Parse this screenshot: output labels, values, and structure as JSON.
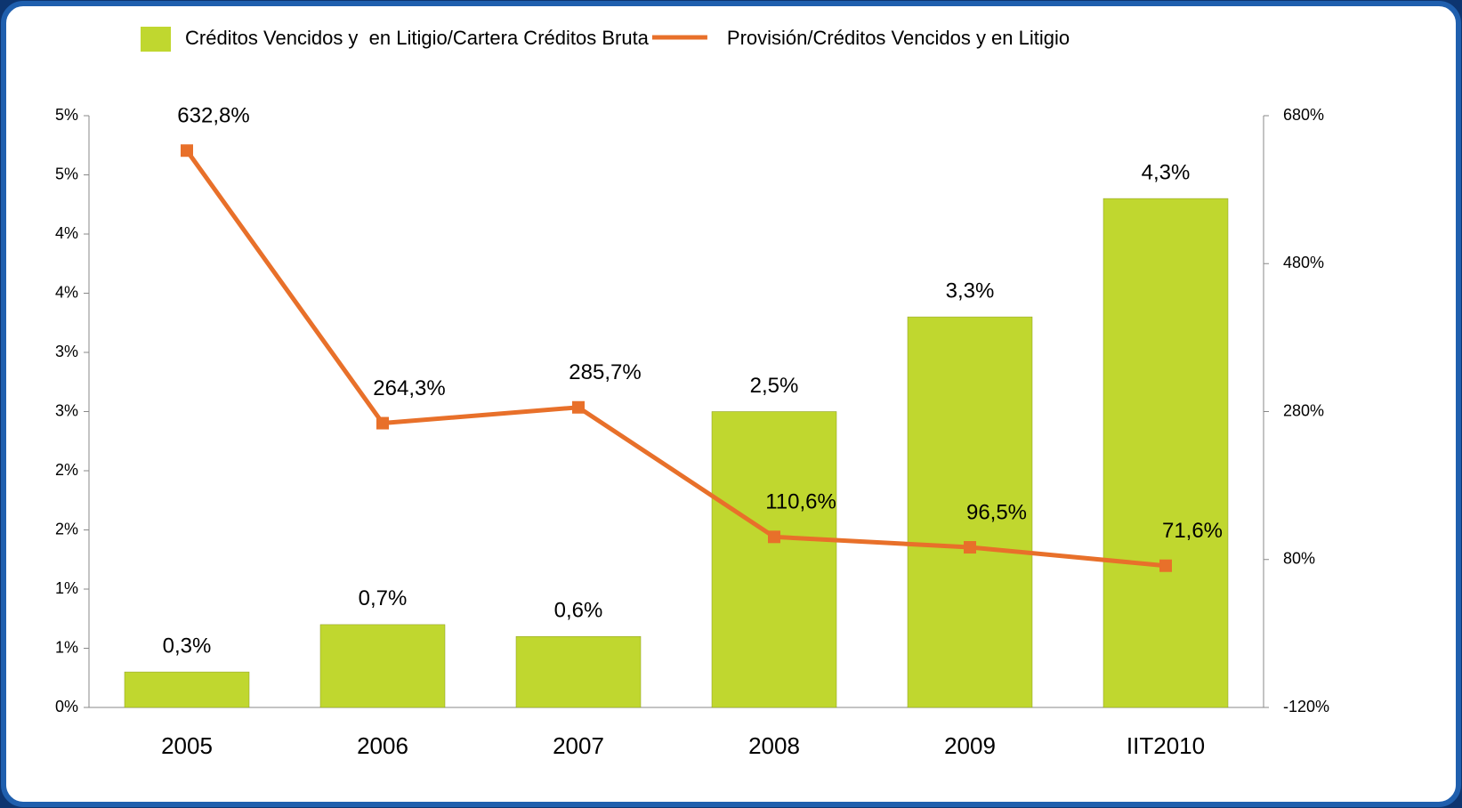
{
  "chart_data": {
    "type": "combo",
    "categories": [
      "2005",
      "2006",
      "2007",
      "2008",
      "2009",
      "IIT2010"
    ],
    "series": [
      {
        "name": "Créditos Vencidos y  en Litigio/Cartera Créditos Bruta",
        "type": "bar",
        "color": "#c0d72f",
        "values": [
          0.3,
          0.7,
          0.6,
          2.5,
          3.3,
          4.3
        ],
        "value_labels": [
          "0,3%",
          "0,7%",
          "0,6%",
          "2,5%",
          "3,3%",
          "4,3%"
        ]
      },
      {
        "name": "Provisión/Créditos Vencidos y en Litigio",
        "type": "line",
        "axis": "y2",
        "color": "#e8702a",
        "values": [
          632.8,
          264.3,
          285.7,
          110.6,
          96.5,
          71.6
        ],
        "value_labels": [
          "632,8%",
          "264,3%",
          "285,7%",
          "110,6%",
          "96,5%",
          "71,6%"
        ]
      }
    ],
    "ylim": [
      0,
      5
    ],
    "yticks": [
      {
        "value": 0,
        "label": "0%"
      },
      {
        "value": 0.5,
        "label": "1%"
      },
      {
        "value": 1,
        "label": "1%"
      },
      {
        "value": 1.5,
        "label": "2%"
      },
      {
        "value": 2,
        "label": "2%"
      },
      {
        "value": 2.5,
        "label": "3%"
      },
      {
        "value": 3,
        "label": "3%"
      },
      {
        "value": 3.5,
        "label": "4%"
      },
      {
        "value": 4,
        "label": "4%"
      },
      {
        "value": 4.5,
        "label": "5%"
      },
      {
        "value": 5,
        "label": "5%"
      }
    ],
    "y2lim": [
      -120,
      680
    ],
    "y2ticks": [
      {
        "value": -120,
        "label": "-120%"
      },
      {
        "value": 80,
        "label": "80%"
      },
      {
        "value": 280,
        "label": "280%"
      },
      {
        "value": 480,
        "label": "480%"
      },
      {
        "value": 680,
        "label": "680%"
      }
    ],
    "legend": "top"
  }
}
